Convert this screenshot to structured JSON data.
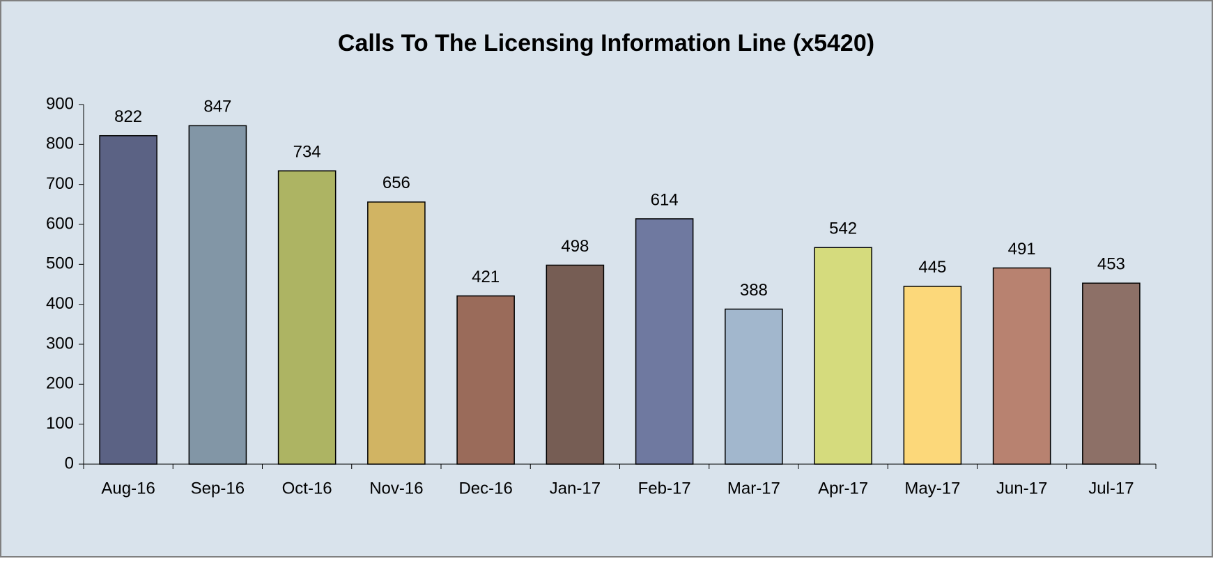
{
  "chart_data": {
    "type": "bar",
    "title": "Calls To The Licensing Information Line (x5420)",
    "categories": [
      "Aug-16",
      "Sep-16",
      "Oct-16",
      "Nov-16",
      "Dec-16",
      "Jan-17",
      "Feb-17",
      "Mar-17",
      "Apr-17",
      "May-17",
      "Jun-17",
      "Jul-17"
    ],
    "values": [
      822,
      847,
      734,
      656,
      421,
      498,
      614,
      388,
      542,
      445,
      491,
      453
    ],
    "colors": [
      "#5b6284",
      "#8296a6",
      "#adb463",
      "#d1b463",
      "#9a6b5a",
      "#765d54",
      "#6f79a0",
      "#a2b7cd",
      "#d5db7d",
      "#fcd87a",
      "#b88270",
      "#8d7067"
    ],
    "ylim": [
      0,
      900
    ],
    "yticks": [
      0,
      100,
      200,
      300,
      400,
      500,
      600,
      700,
      800,
      900
    ],
    "grid": false
  }
}
